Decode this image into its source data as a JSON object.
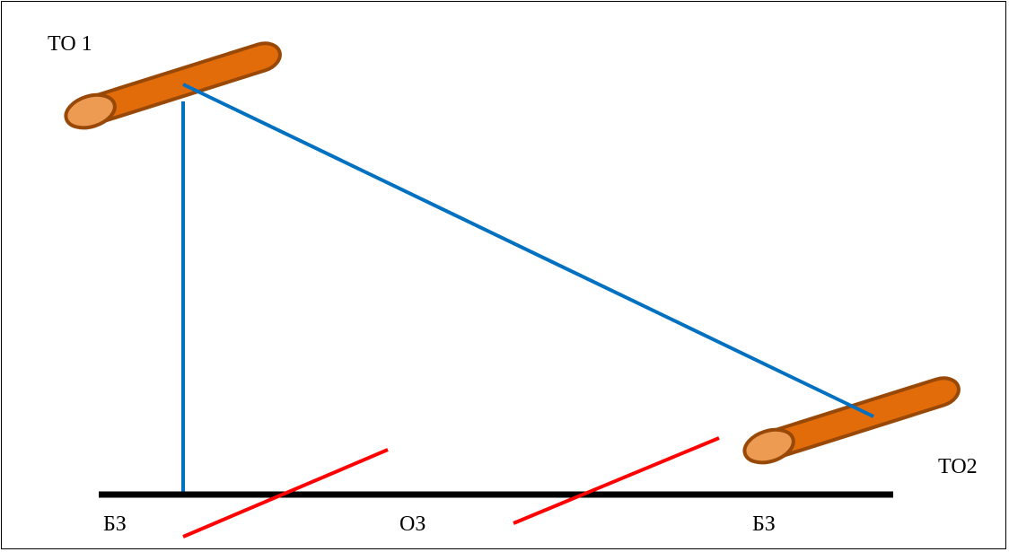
{
  "labels": {
    "top_left": "ТО 1",
    "right": "ТО2",
    "bottom_left": "БЗ",
    "bottom_middle": "ОЗ",
    "bottom_right": "БЗ"
  },
  "colors": {
    "cylinder_fill": "#E36C0A",
    "cylinder_end_fill": "#ED9A52",
    "cylinder_stroke": "#984807",
    "sight_line": "#0070C0",
    "barrier_line": "#FF0000",
    "ground_line": "#000000"
  }
}
